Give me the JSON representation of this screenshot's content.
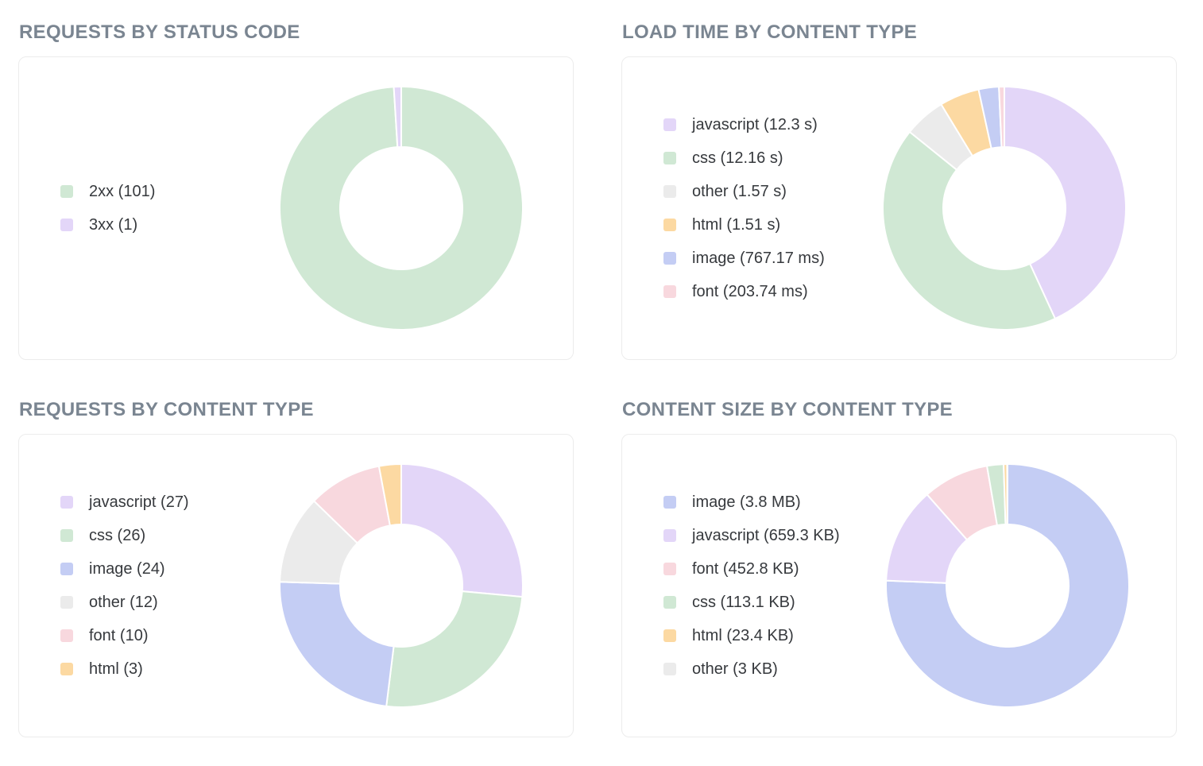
{
  "page": {
    "background": "#ffffff",
    "title_color": "#7a8591",
    "legend_text_color": "#36393d",
    "card_border_color": "#ececec"
  },
  "palette": {
    "purple": "#e3d6f8",
    "green": "#d0e8d4",
    "blue": "#c4cdf4",
    "gray": "#ebebeb",
    "orange": "#fcd9a2",
    "pink": "#f8d8de"
  },
  "chart_data": [
    {
      "type": "pie",
      "variant": "donut",
      "cutout": "50%",
      "legend_position": "left",
      "start_angle": "top, clockwise",
      "title": "REQUESTS BY STATUS CODE",
      "unit": "requests",
      "slices": [
        {
          "label": "2xx",
          "value": 101,
          "display": "2xx (101)",
          "color": "#d0e8d4",
          "color_name": "green"
        },
        {
          "label": "3xx",
          "value": 1,
          "display": "3xx (1)",
          "color": "#e3d6f8",
          "color_name": "purple"
        }
      ]
    },
    {
      "type": "pie",
      "variant": "donut",
      "cutout": "50%",
      "legend_position": "left",
      "start_angle": "top, clockwise",
      "title": "LOAD TIME BY CONTENT TYPE",
      "unit": "ms",
      "slices": [
        {
          "label": "javascript",
          "value": 12300,
          "display": "javascript (12.3 s)",
          "color": "#e3d6f8",
          "color_name": "purple"
        },
        {
          "label": "css",
          "value": 12160,
          "display": "css (12.16 s)",
          "color": "#d0e8d4",
          "color_name": "green"
        },
        {
          "label": "other",
          "value": 1570,
          "display": "other (1.57 s)",
          "color": "#ebebeb",
          "color_name": "gray"
        },
        {
          "label": "html",
          "value": 1510,
          "display": "html (1.51 s)",
          "color": "#fcd9a2",
          "color_name": "orange"
        },
        {
          "label": "image",
          "value": 767.17,
          "display": "image (767.17 ms)",
          "color": "#c4cdf4",
          "color_name": "blue"
        },
        {
          "label": "font",
          "value": 203.74,
          "display": "font (203.74 ms)",
          "color": "#f8d8de",
          "color_name": "pink"
        }
      ]
    },
    {
      "type": "pie",
      "variant": "donut",
      "cutout": "50%",
      "legend_position": "left",
      "start_angle": "top, clockwise",
      "title": "REQUESTS BY CONTENT TYPE",
      "unit": "requests",
      "slices": [
        {
          "label": "javascript",
          "value": 27,
          "display": "javascript (27)",
          "color": "#e3d6f8",
          "color_name": "purple"
        },
        {
          "label": "css",
          "value": 26,
          "display": "css (26)",
          "color": "#d0e8d4",
          "color_name": "green"
        },
        {
          "label": "image",
          "value": 24,
          "display": "image (24)",
          "color": "#c4cdf4",
          "color_name": "blue"
        },
        {
          "label": "other",
          "value": 12,
          "display": "other (12)",
          "color": "#ebebeb",
          "color_name": "gray"
        },
        {
          "label": "font",
          "value": 10,
          "display": "font (10)",
          "color": "#f8d8de",
          "color_name": "pink"
        },
        {
          "label": "html",
          "value": 3,
          "display": "html (3)",
          "color": "#fcd9a2",
          "color_name": "orange"
        }
      ]
    },
    {
      "type": "pie",
      "variant": "donut",
      "cutout": "50%",
      "legend_position": "left",
      "start_angle": "top, clockwise",
      "title": "CONTENT SIZE BY CONTENT TYPE",
      "unit": "KB",
      "slices": [
        {
          "label": "image",
          "value": 3891.2,
          "display": "image (3.8 MB)",
          "color": "#c4cdf4",
          "color_name": "blue"
        },
        {
          "label": "javascript",
          "value": 659.3,
          "display": "javascript (659.3 KB)",
          "color": "#e3d6f8",
          "color_name": "purple"
        },
        {
          "label": "font",
          "value": 452.8,
          "display": "font (452.8 KB)",
          "color": "#f8d8de",
          "color_name": "pink"
        },
        {
          "label": "css",
          "value": 113.1,
          "display": "css (113.1 KB)",
          "color": "#d0e8d4",
          "color_name": "green"
        },
        {
          "label": "html",
          "value": 23.4,
          "display": "html (23.4 KB)",
          "color": "#fcd9a2",
          "color_name": "orange"
        },
        {
          "label": "other",
          "value": 3,
          "display": "other (3 KB)",
          "color": "#ebebeb",
          "color_name": "gray"
        }
      ]
    }
  ]
}
